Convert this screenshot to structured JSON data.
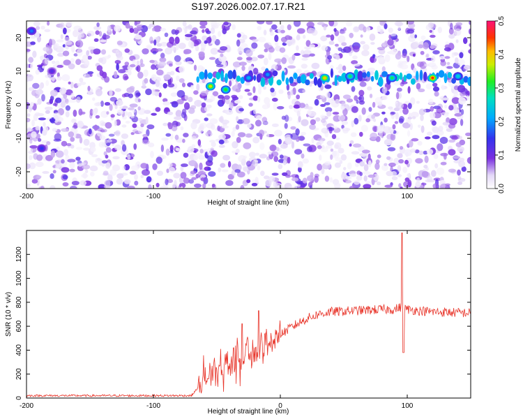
{
  "title": "S197.2026.002.07.17.R21",
  "chart_data": [
    {
      "type": "heatmap",
      "xlabel": "Height of straight line (km)",
      "ylabel": "Frequency (Hz)",
      "xlim": [
        -200,
        150
      ],
      "ylim": [
        -25,
        25
      ],
      "x_ticks": [
        -200,
        -100,
        0,
        100
      ],
      "y_ticks": [
        20,
        10,
        0,
        -10,
        -20
      ],
      "colorbar": {
        "label": "Normalized spectral amplitude",
        "range": [
          0,
          0.5
        ],
        "ticks": [
          "0.5",
          "0.4",
          "0.3",
          "0.2",
          "0.1",
          "0.0"
        ]
      },
      "grid": false,
      "features": [
        {
          "x": -55,
          "y": 5.5,
          "amplitude": 0.38
        },
        {
          "x": -43,
          "y": 4.5,
          "amplitude": 0.32
        },
        {
          "x": -25,
          "y": 8.0,
          "amplitude": 0.22
        },
        {
          "x": -10,
          "y": 9.0,
          "amplitude": 0.2
        },
        {
          "x": 35,
          "y": 8.0,
          "amplitude": 0.4
        },
        {
          "x": 55,
          "y": 8.5,
          "amplitude": 0.3
        },
        {
          "x": 88,
          "y": 8.0,
          "amplitude": 0.3
        },
        {
          "x": 120,
          "y": 8.0,
          "amplitude": 0.45
        },
        {
          "x": 140,
          "y": 8.5,
          "amplitude": 0.25
        },
        {
          "x": -180,
          "y": 10.0,
          "amplitude": 0.12
        },
        {
          "x": -196,
          "y": 22.0,
          "amplitude": 0.18
        },
        {
          "x": -188,
          "y": -13.0,
          "amplitude": 0.15
        }
      ]
    },
    {
      "type": "line",
      "xlabel": "Height of straight line (km)",
      "ylabel": "SNR (10 * v/v)",
      "xlim": [
        -200,
        150
      ],
      "ylim": [
        0,
        1400
      ],
      "x_ticks": [
        -200,
        -100,
        0,
        100
      ],
      "y_ticks": [
        0,
        200,
        400,
        600,
        800,
        1000,
        1200
      ],
      "grid": false,
      "color": "#e8352a",
      "series": [
        {
          "x": [
            -200,
            -150,
            -100,
            -70,
            -60,
            -50,
            -40,
            -30,
            -20,
            -10,
            0,
            10,
            20,
            30,
            40,
            60,
            80,
            90,
            95,
            100,
            120,
            150
          ],
          "values": [
            20,
            20,
            20,
            20,
            150,
            240,
            290,
            340,
            380,
            460,
            530,
            600,
            660,
            700,
            720,
            730,
            740,
            740,
            760,
            740,
            720,
            710
          ],
          "peaks": [
            {
              "x": -30,
              "y": 620
            },
            {
              "x": -17,
              "y": 730
            },
            {
              "x": 96,
              "y": 1380
            },
            {
              "x": 97,
              "y": 380
            }
          ]
        }
      ]
    }
  ]
}
